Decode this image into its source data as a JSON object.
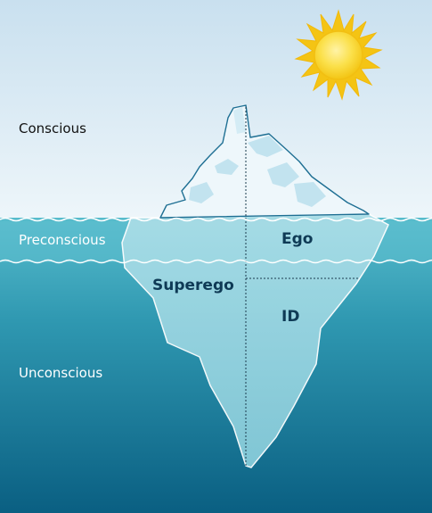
{
  "levels": {
    "conscious": "Conscious",
    "preconscious": "Preconscious",
    "unconscious": "Unconscious"
  },
  "parts": {
    "ego": "Ego",
    "superego": "Superego",
    "id": "ID"
  },
  "colors": {
    "sky_top": "#cfe4f1",
    "sky_bottom": "#edf5fa",
    "water_top": "#4fb4c6",
    "water_bottom": "#0b6486",
    "ice_above": "#eaf5fa",
    "ice_shade": "#bfe1ee",
    "ice_below": "#8ed1dd",
    "outline": "#1e6f93",
    "sun": "#f8d21c",
    "label_dark": "#0e3a55"
  },
  "icons": {
    "sun": "sun-icon"
  }
}
